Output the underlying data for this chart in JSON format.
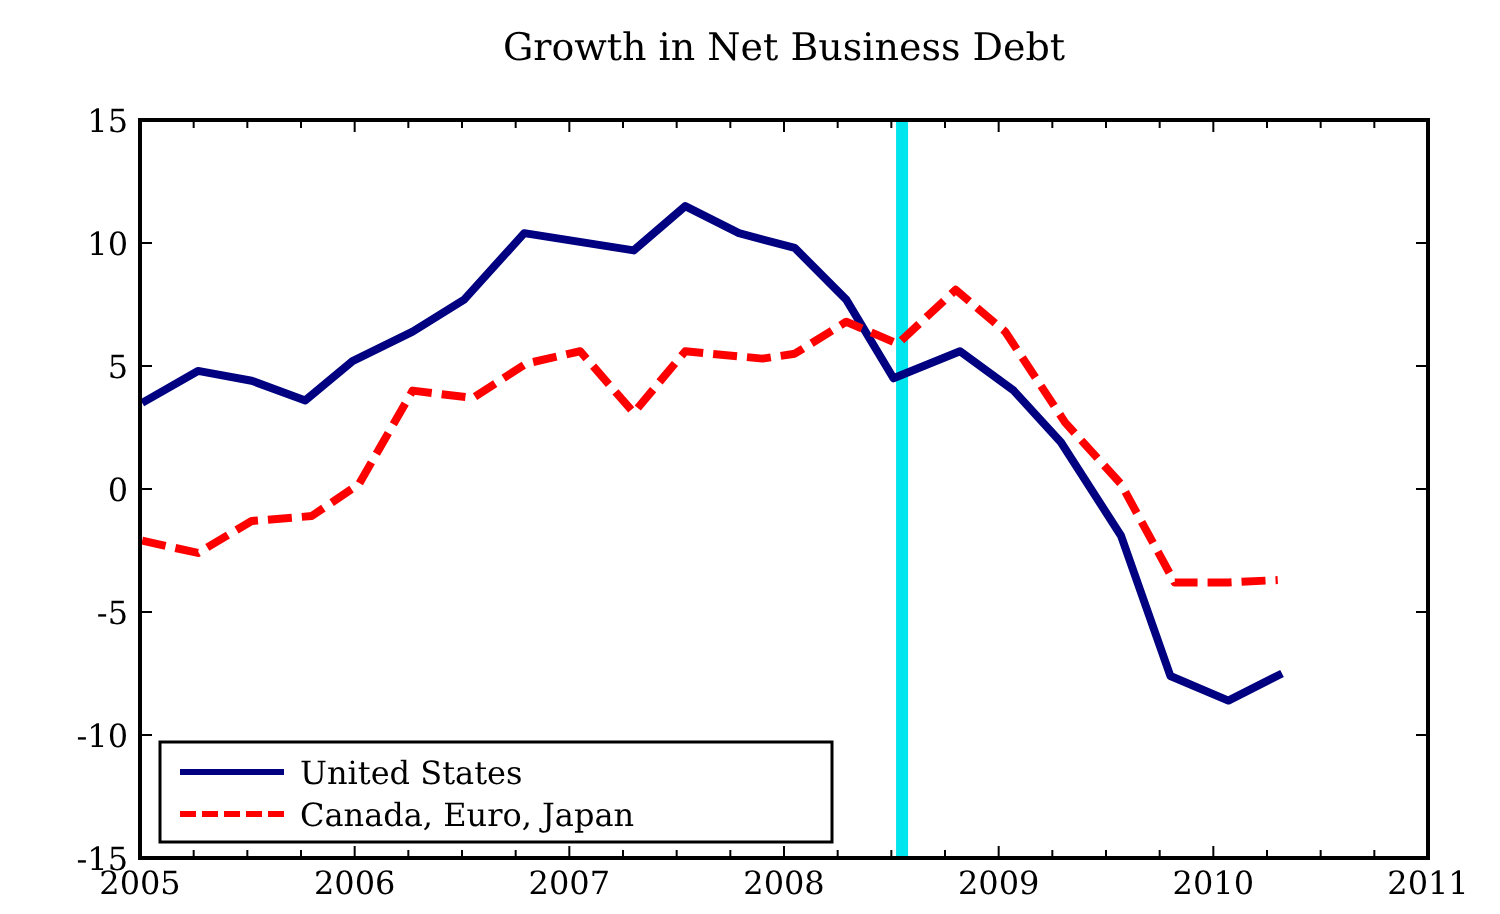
{
  "chart_data": {
    "type": "line",
    "title": "Growth in Net Business Debt",
    "xlim": [
      2005,
      2011
    ],
    "xticks": [
      2005,
      {
        "value": 2005.25,
        "label": null
      },
      {
        "value": 2005.5,
        "label": null
      },
      {
        "value": 2005.75,
        "label": null
      },
      2006,
      {
        "value": 2006.25,
        "label": null
      },
      {
        "value": 2006.5,
        "label": null
      },
      {
        "value": 2006.75,
        "label": null
      },
      2007,
      {
        "value": 2007.25,
        "label": null
      },
      {
        "value": 2007.5,
        "label": null
      },
      {
        "value": 2007.75,
        "label": null
      },
      2008,
      {
        "value": 2008.25,
        "label": null
      },
      {
        "value": 2008.5,
        "label": null
      },
      {
        "value": 2008.75,
        "label": null
      },
      2009,
      {
        "value": 2009.25,
        "label": null
      },
      {
        "value": 2009.5,
        "label": null
      },
      {
        "value": 2009.75,
        "label": null
      },
      2010,
      {
        "value": 2010.25,
        "label": null
      },
      {
        "value": 2010.5,
        "label": null
      },
      {
        "value": 2010.75,
        "label": null
      },
      2011
    ],
    "ylim": [
      -15,
      15
    ],
    "yticks": [
      -15,
      -10,
      -5,
      0,
      5,
      10,
      15
    ],
    "grid": false,
    "legend": "bottom left",
    "series": [
      {
        "name": "United States",
        "color": "#000080",
        "line_style": "solid",
        "x": [
          2005.01,
          2005.27,
          2005.52,
          2005.77,
          2005.99,
          2006.27,
          2006.51,
          2006.79,
          2007.3,
          2007.54,
          2007.79,
          2008.05,
          2008.29,
          2008.51,
          2008.82,
          2009.07,
          2009.29,
          2009.57,
          2009.8,
          2010.07,
          2010.32
        ],
        "values": [
          3.5,
          4.8,
          4.4,
          3.6,
          5.2,
          6.4,
          7.7,
          10.4,
          9.7,
          11.5,
          10.4,
          9.8,
          7.7,
          4.5,
          5.6,
          4.0,
          1.9,
          -1.9,
          -7.6,
          -8.6,
          -7.5
        ]
      },
      {
        "name": "Canada, Euro, Japan",
        "color": "#ff0000",
        "line_style": "dashed",
        "x": [
          2005.01,
          2005.27,
          2005.52,
          2005.8,
          2006.02,
          2006.27,
          2006.55,
          2006.8,
          2007.05,
          2007.3,
          2007.54,
          2007.9,
          2008.05,
          2008.29,
          2008.53,
          2008.8,
          2009.03,
          2009.31,
          2009.57,
          2009.82,
          2010.07,
          2010.3
        ],
        "values": [
          -2.1,
          -2.6,
          -1.3,
          -1.1,
          0.2,
          4.0,
          3.7,
          5.1,
          5.6,
          3.1,
          5.6,
          5.3,
          5.5,
          6.8,
          5.9,
          8.1,
          6.4,
          2.7,
          0.2,
          -3.8,
          -3.8,
          -3.7
        ]
      }
    ],
    "ref_lines": [
      {
        "axis": "x",
        "value": 2008.55,
        "color": "#00e5ee"
      }
    ]
  }
}
